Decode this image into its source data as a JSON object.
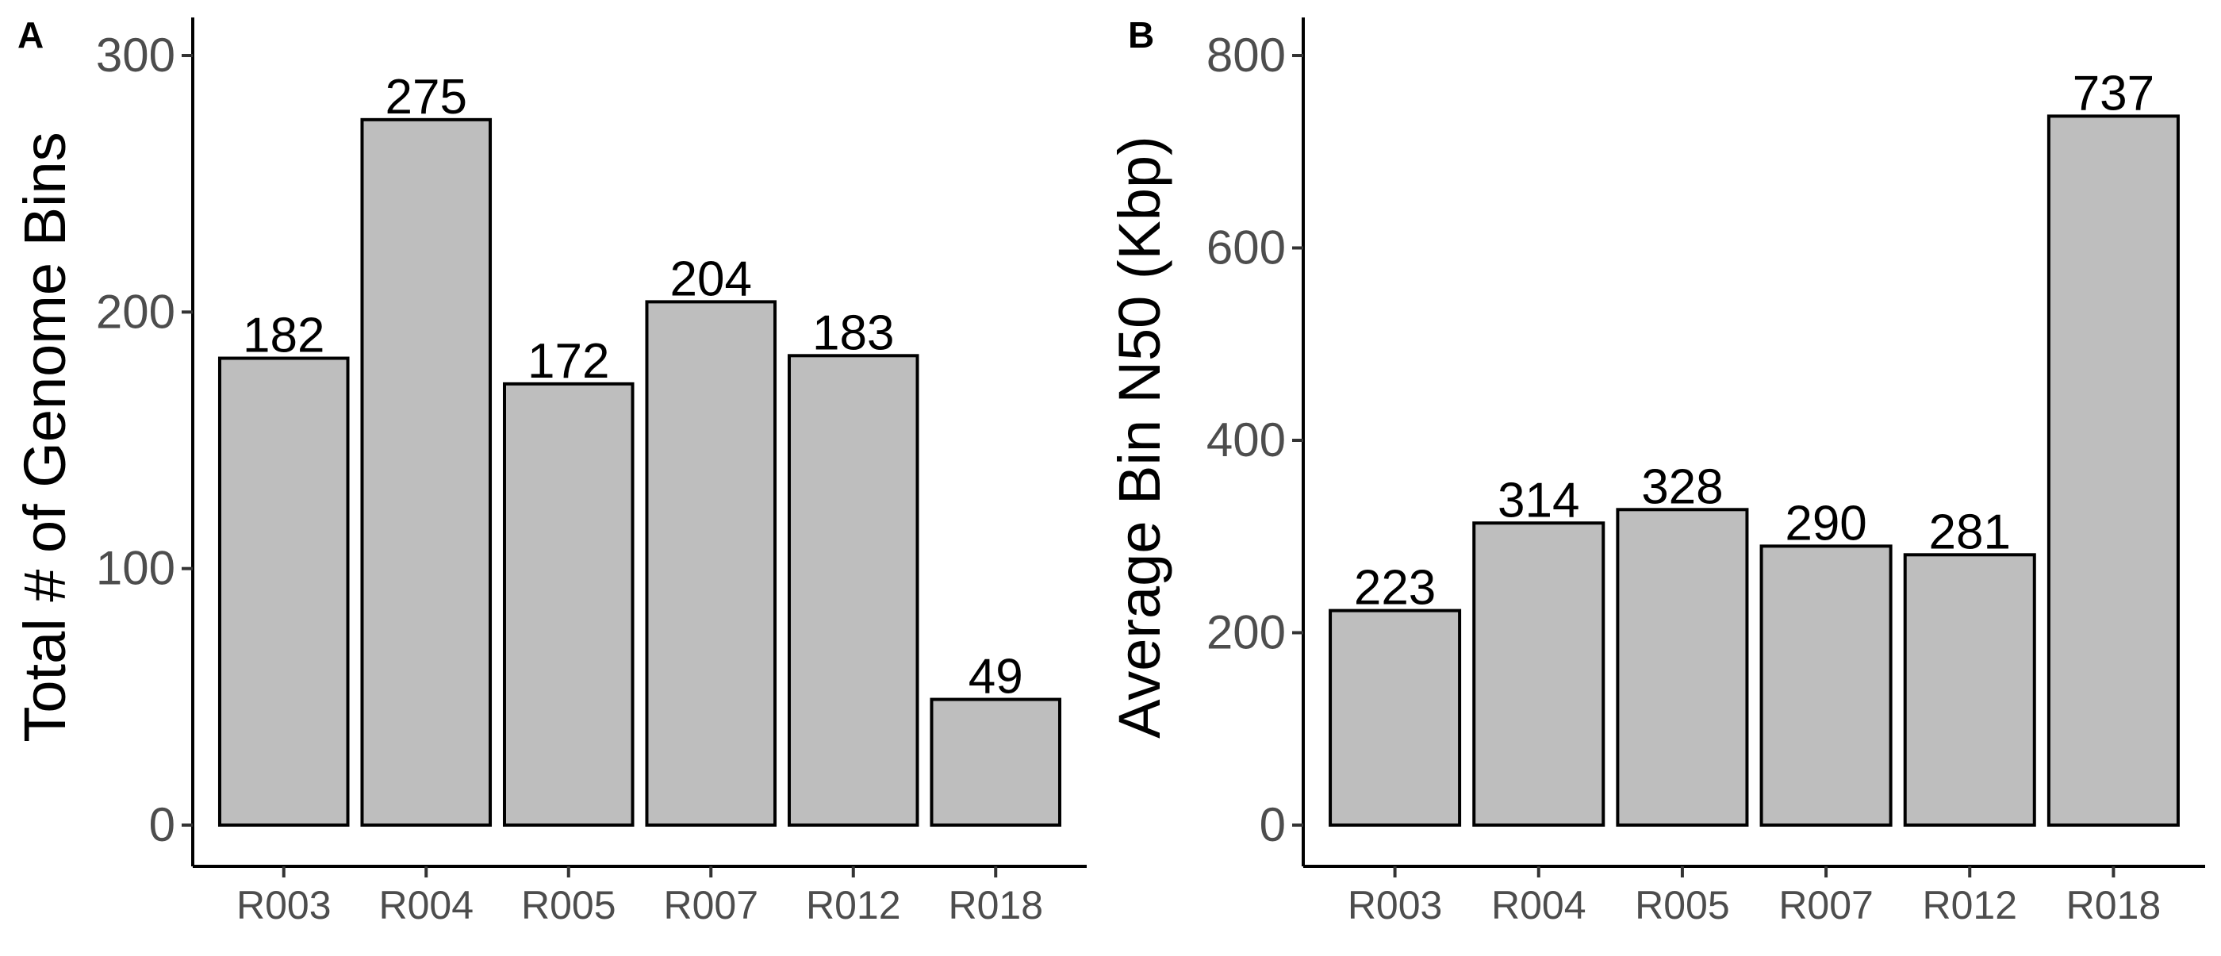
{
  "chart_data": [
    {
      "type": "bar",
      "panel": "A",
      "title": "",
      "xlabel": "",
      "ylabel": "Total # of Genome Bins",
      "categories": [
        "R003",
        "R004",
        "R005",
        "R007",
        "R012",
        "R018"
      ],
      "values": [
        182,
        275,
        172,
        204,
        183,
        49
      ],
      "ylim": [
        0,
        315
      ],
      "yticks": [
        0,
        100,
        200,
        300
      ],
      "bar_color": "#bebebe",
      "grid": false
    },
    {
      "type": "bar",
      "panel": "B",
      "title": "",
      "xlabel": "",
      "ylabel": "Average Bin N50 (Kbp)",
      "categories": [
        "R003",
        "R004",
        "R005",
        "R007",
        "R012",
        "R018"
      ],
      "values": [
        223,
        314,
        328,
        290,
        281,
        737
      ],
      "ylim": [
        0,
        840
      ],
      "yticks": [
        0,
        200,
        400,
        600,
        800
      ],
      "bar_color": "#bebebe",
      "grid": false
    }
  ]
}
